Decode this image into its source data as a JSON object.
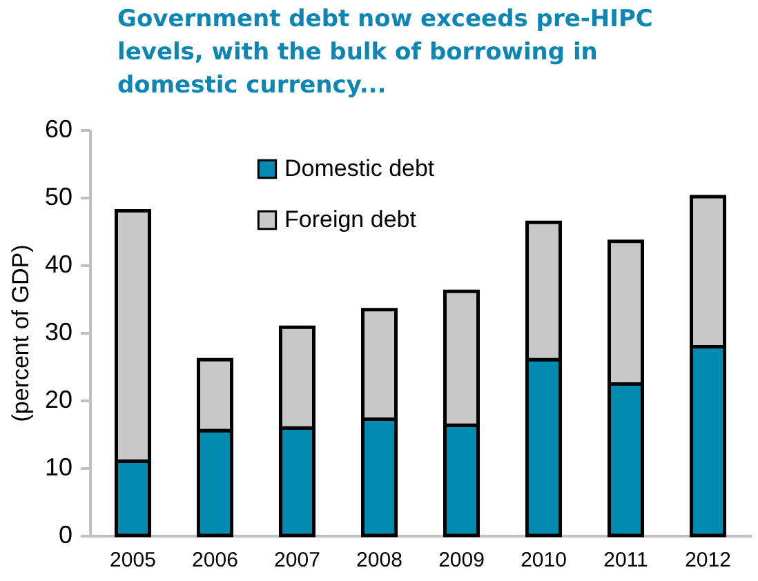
{
  "chart_data": {
    "type": "bar",
    "title": "Government debt now exceeds  pre-HIPC levels, with the bulk of borrowing in domestic  currency...",
    "ylabel": "(percent of GDP)",
    "categories": [
      "2005",
      "2006",
      "2007",
      "2008",
      "2009",
      "2010",
      "2011",
      "2012"
    ],
    "stacked": true,
    "series": [
      {
        "name": "Domestic debt",
        "color": "#008bb0",
        "values": [
          11,
          15.5,
          15.9,
          17.2,
          16.3,
          26,
          22.4,
          27.9
        ]
      },
      {
        "name": "Foreign debt",
        "color": "#c8c8c8",
        "values": [
          37,
          10.5,
          14.9,
          16.2,
          19.8,
          20.3,
          21.1,
          22.2
        ]
      }
    ],
    "ylim": [
      0,
      60
    ],
    "yticks": [
      0,
      10,
      20,
      30,
      40,
      50,
      60
    ],
    "grid": false,
    "legend": "top left"
  }
}
